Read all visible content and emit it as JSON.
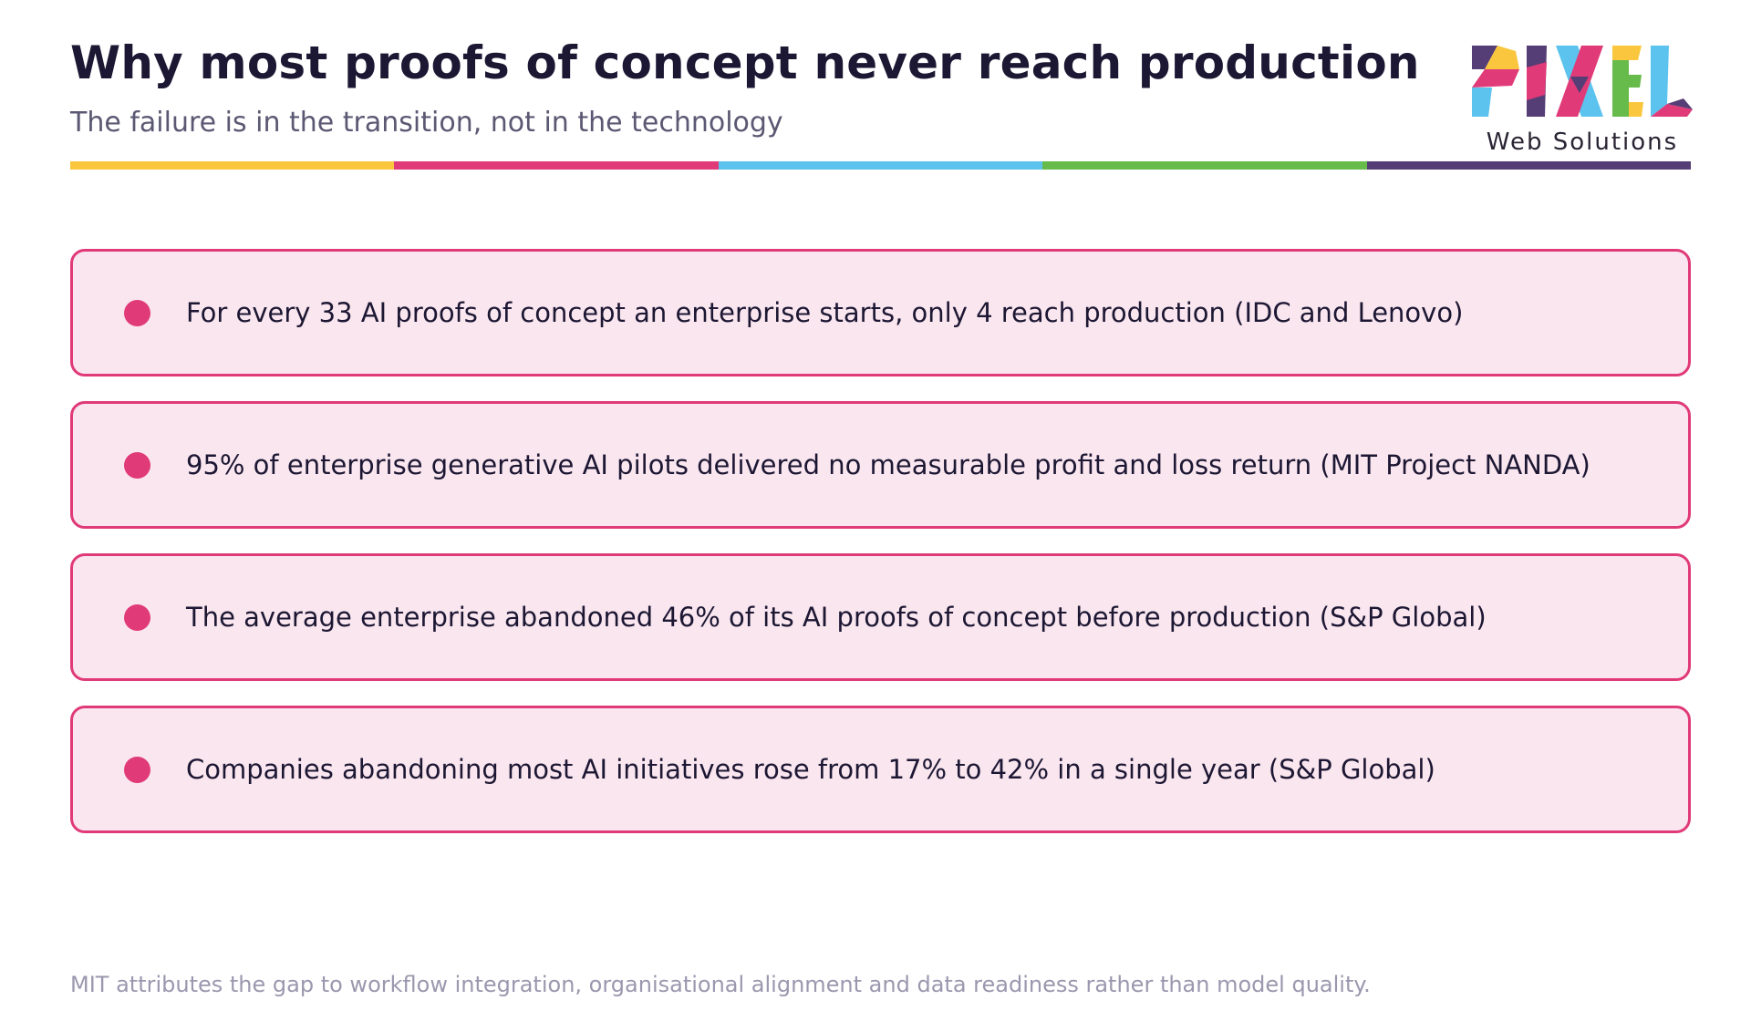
{
  "header": {
    "title": "Why most proofs of concept never reach production",
    "subtitle": "The failure is in the transition, not in the technology"
  },
  "logo": {
    "wordmark": "PIXEL",
    "tagline": "Web Solutions"
  },
  "accent_colors": [
    "#f9c63d",
    "#e03a78",
    "#5bc3ee",
    "#66bb4a",
    "#553d75"
  ],
  "bullet_color": "#e03a78",
  "card_border_color": "#e03a78",
  "card_background": "#fae6ef",
  "items": [
    {
      "text": "For every 33 AI proofs of concept an enterprise starts, only 4 reach production (IDC and Lenovo)"
    },
    {
      "text": "95% of enterprise generative AI pilots delivered no measurable profit and loss return (MIT Project NANDA)"
    },
    {
      "text": "The average enterprise abandoned 46% of its AI proofs of concept before production (S&P Global)"
    },
    {
      "text": "Companies abandoning most AI initiatives rose from 17% to 42% in a single year (S&P Global)"
    }
  ],
  "footnote": "MIT attributes the gap to workflow integration, organisational alignment and data readiness rather than model quality."
}
